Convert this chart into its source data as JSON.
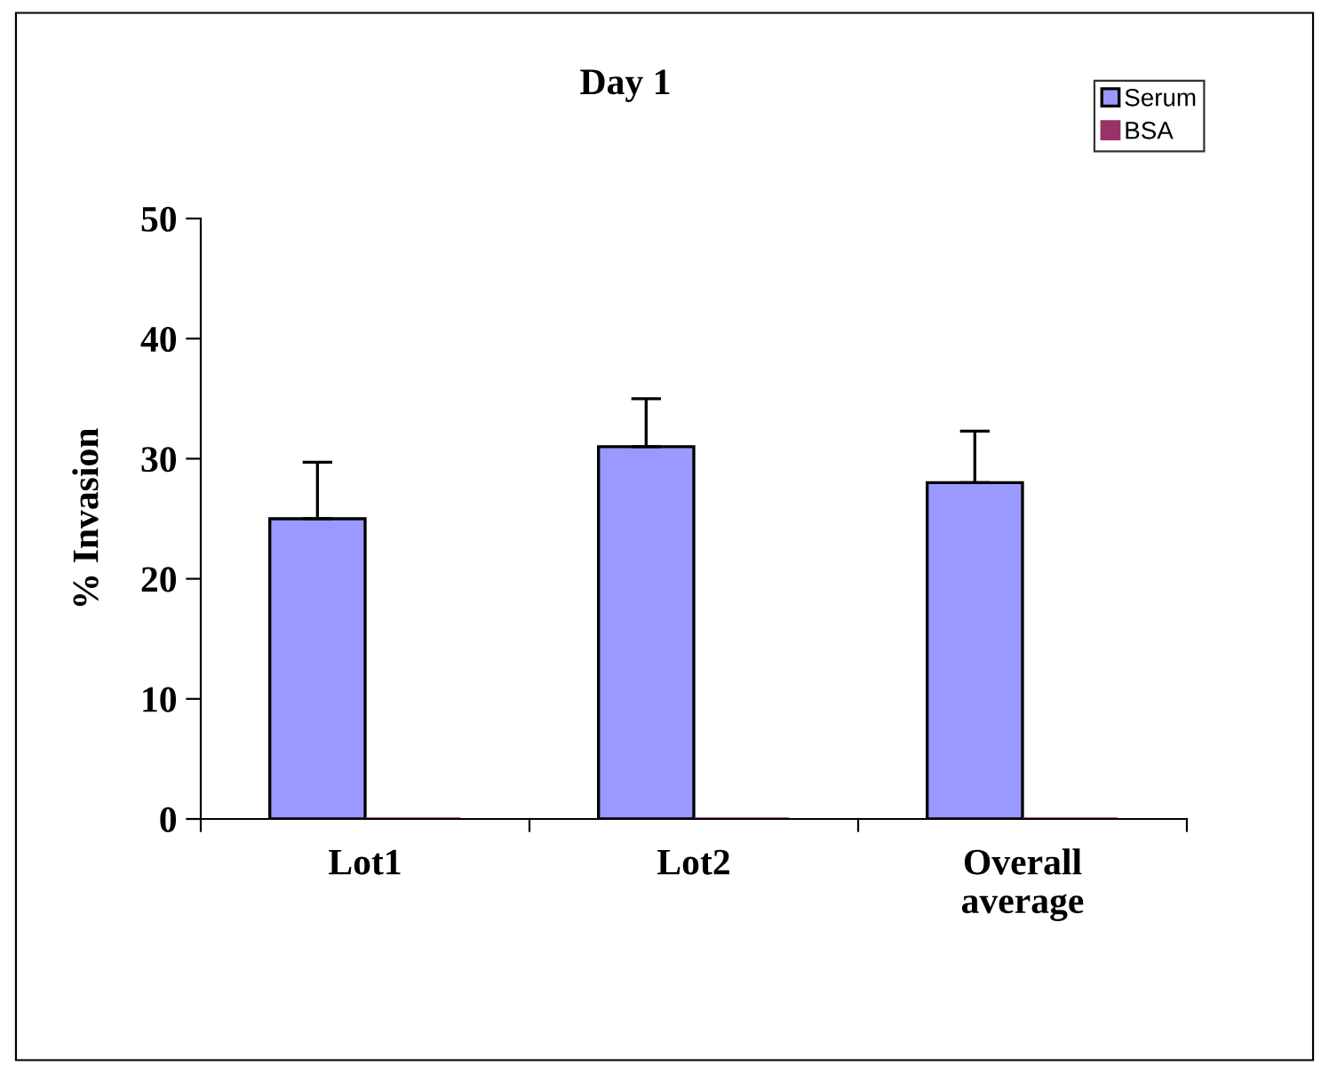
{
  "chart_data": {
    "type": "bar",
    "title": "Day 1",
    "ylabel": "% Invasion",
    "categories": [
      "Lot1",
      "Lot2",
      "Overall\naverage"
    ],
    "series": [
      {
        "name": "Serum",
        "color": "#9999ff",
        "values": [
          25,
          31,
          28
        ],
        "errors": [
          4.7,
          4.0,
          4.3
        ]
      },
      {
        "name": "BSA",
        "color": "#993366",
        "values": [
          0,
          0,
          0
        ]
      }
    ],
    "ylim": [
      0,
      50
    ],
    "yticks": [
      0,
      10,
      20,
      30,
      40,
      50
    ],
    "grid": false,
    "legend": "top right"
  }
}
